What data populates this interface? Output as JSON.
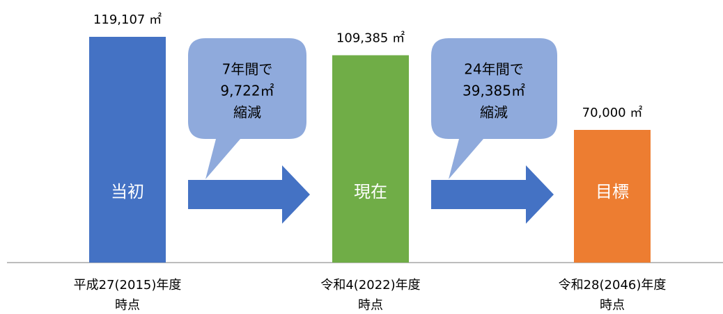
{
  "chart_data": {
    "type": "bar",
    "categories": [
      [
        "平成27(2015)年度",
        "時点"
      ],
      [
        "令和4(2022)年度",
        "時点"
      ],
      [
        "令和28(2046)年度",
        "時点"
      ]
    ],
    "bar_labels": [
      "当初",
      "現在",
      "目標"
    ],
    "values": [
      119107,
      109385,
      70000
    ],
    "value_labels": [
      "119,107 ㎡",
      "109,385 ㎡",
      "70,000 ㎡"
    ],
    "colors": [
      "#4472c4",
      "#70ad47",
      "#ed7d31"
    ],
    "annotations": [
      {
        "lines": [
          "7年間で",
          "9,722㎡",
          "縮減"
        ]
      },
      {
        "lines": [
          "24年間で",
          "39,385㎡",
          "縮減"
        ]
      }
    ]
  }
}
